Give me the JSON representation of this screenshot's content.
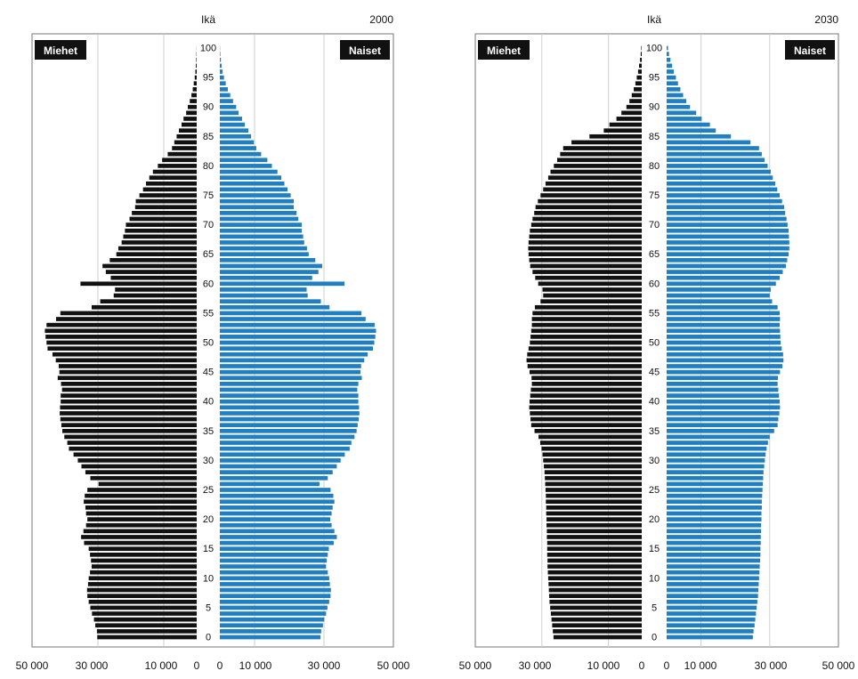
{
  "charts": [
    {
      "year": "2000",
      "age_label": "Ikä",
      "male_label": "Miehet",
      "female_label": "Naiset",
      "left_ticks": [
        "50 000",
        "30 000",
        "10 000",
        "0"
      ],
      "right_ticks": [
        "0",
        "10 000",
        "30 000",
        "50 000"
      ],
      "age_ticks": [
        "0",
        "5",
        "10",
        "15",
        "20",
        "25",
        "30",
        "35",
        "40",
        "45",
        "50",
        "55",
        "60",
        "65",
        "70",
        "75",
        "80",
        "85",
        "90",
        "95",
        "100"
      ]
    },
    {
      "year": "2030",
      "age_label": "Ikä",
      "male_label": "Miehet",
      "female_label": "Naiset",
      "left_ticks": [
        "50 000",
        "30 000",
        "10 000",
        "0"
      ],
      "right_ticks": [
        "0",
        "10 000",
        "30 000",
        "50 000"
      ],
      "age_ticks": [
        "0",
        "5",
        "10",
        "15",
        "20",
        "25",
        "30",
        "35",
        "40",
        "45",
        "50",
        "55",
        "60",
        "65",
        "70",
        "75",
        "80",
        "85",
        "90",
        "95",
        "100"
      ]
    }
  ],
  "chart_data": [
    {
      "type": "bar",
      "title": "2000",
      "ylabel": "Ikä",
      "xlim": [
        0,
        50000
      ],
      "ylim": [
        0,
        100
      ],
      "colors": {
        "male": "#111111",
        "female": "#1f7fc1"
      },
      "series": [
        {
          "name": "Miehet",
          "values": [
            30200,
            30300,
            30800,
            31200,
            31800,
            32300,
            32800,
            33200,
            33300,
            33000,
            32800,
            32400,
            31900,
            32100,
            32400,
            32800,
            34200,
            35100,
            34400,
            33600,
            33200,
            33600,
            33800,
            34300,
            34000,
            33200,
            29800,
            32300,
            33800,
            35000,
            36100,
            37400,
            38800,
            39300,
            40200,
            40800,
            41100,
            41400,
            41600,
            41500,
            41300,
            41300,
            40900,
            41200,
            42200,
            41700,
            41900,
            42800,
            43800,
            45300,
            45600,
            45900,
            46100,
            45600,
            42700,
            41400,
            31900,
            29300,
            25200,
            24800,
            35300,
            26100,
            27600,
            28600,
            26400,
            24400,
            23800,
            22800,
            22300,
            21800,
            21500,
            20400,
            19700,
            18700,
            18500,
            17400,
            16300,
            15400,
            14400,
            13300,
            11800,
            10500,
            8800,
            7500,
            6800,
            6100,
            5400,
            4600,
            4000,
            3200,
            2700,
            2100,
            1600,
            1200,
            900,
            600,
            400,
            250,
            150,
            80,
            30
          ]
        },
        {
          "name": "Naiset",
          "values": [
            29000,
            29200,
            29700,
            30100,
            30600,
            31000,
            31500,
            31900,
            32000,
            31700,
            31500,
            31100,
            30600,
            30800,
            31100,
            31400,
            32800,
            33700,
            33000,
            32200,
            31800,
            32200,
            32500,
            33000,
            32700,
            31900,
            28700,
            31100,
            32500,
            33700,
            34800,
            36000,
            37400,
            37900,
            38800,
            39400,
            39700,
            40000,
            40200,
            40100,
            39900,
            39900,
            39600,
            39900,
            40900,
            40500,
            40700,
            41600,
            42600,
            44100,
            44500,
            44800,
            45000,
            44600,
            42000,
            40800,
            31600,
            29100,
            25300,
            25000,
            35900,
            26600,
            28400,
            29500,
            27500,
            25600,
            25100,
            24300,
            24000,
            23600,
            23600,
            22600,
            22100,
            21300,
            21300,
            20400,
            19500,
            18600,
            17700,
            16600,
            15000,
            13700,
            11900,
            10500,
            9800,
            9000,
            8200,
            7200,
            6400,
            5400,
            4700,
            3800,
            3000,
            2300,
            1700,
            1200,
            800,
            500,
            300,
            150,
            60
          ]
        }
      ]
    },
    {
      "type": "bar",
      "title": "2030",
      "ylabel": "Ikä",
      "xlim": [
        0,
        50000
      ],
      "ylim": [
        0,
        100
      ],
      "colors": {
        "male": "#111111",
        "female": "#1f7fc1"
      },
      "series": [
        {
          "name": "Miehet",
          "values": [
            26500,
            26700,
            26900,
            27100,
            27300,
            27500,
            27700,
            27800,
            27900,
            28000,
            28100,
            28200,
            28300,
            28300,
            28400,
            28400,
            28400,
            28500,
            28500,
            28600,
            28600,
            28700,
            28700,
            28800,
            28800,
            28900,
            29000,
            29100,
            29200,
            29400,
            29600,
            29800,
            30100,
            30500,
            31000,
            32200,
            33200,
            33400,
            33600,
            33800,
            33700,
            33500,
            33300,
            33000,
            33100,
            33700,
            34300,
            34600,
            34400,
            34000,
            33600,
            33400,
            33200,
            33000,
            33000,
            32800,
            32100,
            30400,
            29600,
            29800,
            31100,
            32000,
            32800,
            33500,
            33800,
            34000,
            34100,
            34000,
            33800,
            33600,
            33200,
            32800,
            32300,
            31900,
            31200,
            30400,
            29600,
            28900,
            28100,
            27400,
            26400,
            25400,
            24500,
            23600,
            21100,
            15700,
            11400,
            9700,
            7600,
            6100,
            4600,
            3700,
            3000,
            2400,
            1900,
            1500,
            1100,
            800,
            500,
            300,
            150
          ]
        },
        {
          "name": "Naiset",
          "values": [
            25100,
            25300,
            25600,
            25800,
            26000,
            26200,
            26400,
            26600,
            26700,
            26800,
            26900,
            27000,
            27100,
            27200,
            27300,
            27300,
            27400,
            27400,
            27500,
            27500,
            27600,
            27600,
            27700,
            27700,
            27800,
            27900,
            28000,
            28100,
            28200,
            28400,
            28600,
            28800,
            29100,
            29500,
            30000,
            31300,
            32300,
            32500,
            32800,
            33000,
            32900,
            32700,
            32500,
            32300,
            32400,
            33000,
            33700,
            34000,
            33900,
            33500,
            33200,
            33100,
            33000,
            32900,
            33000,
            32900,
            32300,
            30700,
            30000,
            30300,
            31800,
            32900,
            33800,
            34700,
            35100,
            35500,
            35700,
            35700,
            35600,
            35500,
            35200,
            34900,
            34500,
            34200,
            33600,
            32900,
            32200,
            31600,
            30900,
            30300,
            29400,
            28500,
            27700,
            26900,
            24400,
            18700,
            14300,
            12600,
            10200,
            8600,
            6800,
            5700,
            4800,
            4000,
            3300,
            2700,
            2100,
            1600,
            1100,
            700,
            400
          ]
        }
      ]
    }
  ]
}
